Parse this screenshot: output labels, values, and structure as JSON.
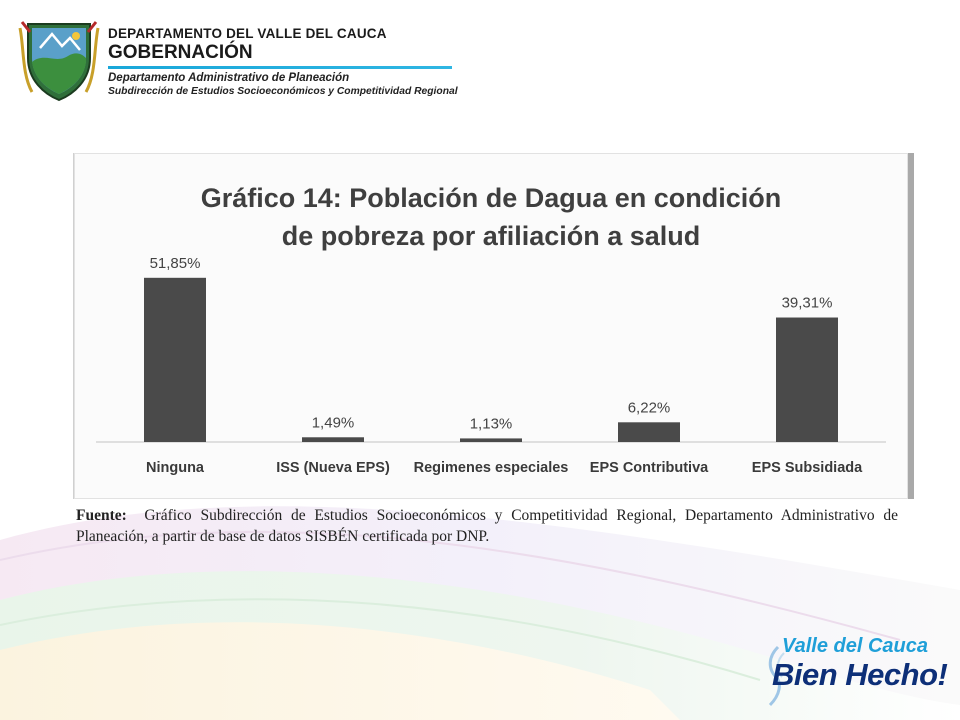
{
  "header": {
    "department": "DEPARTAMENTO DEL VALLE DEL CAUCA",
    "government": "GOBERNACIÓN",
    "admin_department": "Departamento  Administrativo de Planeación",
    "subdirectorate": "Subdirección de Estudios Socioeconómicos y Competitividad Regional"
  },
  "chart_data": {
    "type": "bar",
    "title_line1": "Gráfico 14: Población de Dagua en condición",
    "title_line2": "de pobreza por afiliación a salud",
    "categories": [
      "Ninguna",
      "ISS (Nueva EPS)",
      "Regimenes especiales",
      "EPS Contributiva",
      "EPS Subsidiada"
    ],
    "values": [
      51.85,
      1.49,
      1.13,
      6.22,
      39.31
    ],
    "value_labels": [
      "51,85%",
      "1,49%",
      "1,13%",
      "6,22%",
      "39,31%"
    ],
    "ylim": [
      0,
      60
    ],
    "grid": false,
    "legend": "none",
    "bar_color": "#4a4a4a"
  },
  "source": {
    "label": "Fuente:",
    "text": "Gráfico Subdirección de Estudios Socioeconómicos y Competitividad Regional, Departamento Administrativo de Planeación, a partir de base de datos SISBÉN certificada por DNP."
  },
  "brand": {
    "line1": "Valle del Cauca",
    "line2": "Bien Hecho",
    "exclamation": "!"
  },
  "colors": {
    "accent_blue": "#1f9fd8",
    "brand_navy": "#0d2f78",
    "header_rule": "#19a7d9"
  }
}
